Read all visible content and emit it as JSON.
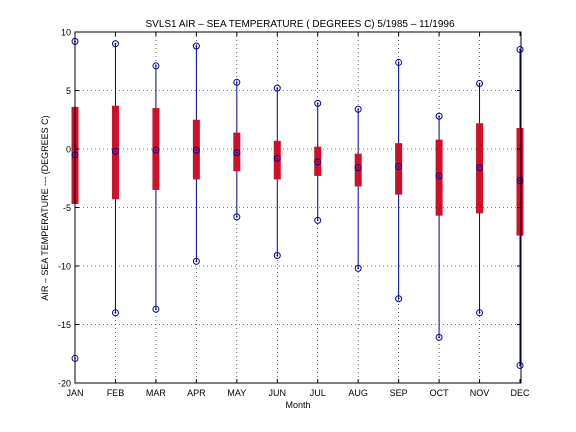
{
  "chart_data": {
    "type": "box",
    "title": "SVLS1  AIR – SEA TEMPERATURE ( DEGREES C) 5/1985 – 11/1996",
    "xlabel": "Month",
    "ylabel": "AIR – SEA TEMPERATURE --- (DEGREES C)",
    "ylim": [
      -20,
      10
    ],
    "yticks": [
      -20,
      -15,
      -10,
      -5,
      0,
      5,
      10
    ],
    "grid": true,
    "categories": [
      "JAN",
      "FEB",
      "MAR",
      "APR",
      "MAY",
      "JUN",
      "JUL",
      "AUG",
      "SEP",
      "OCT",
      "NOV",
      "DEC"
    ],
    "series": [
      {
        "min": [
          -17.9,
          -14.0,
          -13.7,
          -9.6,
          -5.8,
          -9.1,
          -6.1,
          -10.2,
          -12.8,
          -16.1,
          -14.0,
          -18.5
        ],
        "q1": [
          -4.7,
          -4.3,
          -3.5,
          -2.6,
          -1.9,
          -2.6,
          -2.3,
          -3.2,
          -3.9,
          -5.7,
          -5.5,
          -7.4
        ],
        "median": [
          -0.5,
          -0.2,
          -0.1,
          -0.1,
          -0.3,
          -0.8,
          -1.1,
          -1.6,
          -1.5,
          -2.3,
          -1.6,
          -2.7
        ],
        "q3": [
          3.6,
          3.7,
          3.5,
          2.5,
          1.4,
          0.7,
          0.2,
          -0.4,
          0.5,
          0.8,
          2.2,
          1.8
        ],
        "max": [
          9.2,
          9.0,
          7.1,
          8.8,
          5.7,
          5.2,
          3.9,
          3.4,
          7.4,
          2.8,
          5.6,
          8.5
        ]
      }
    ],
    "colors": {
      "whisker": "#0000a0",
      "box": "#d0102a",
      "marker": "#0000a0"
    }
  }
}
